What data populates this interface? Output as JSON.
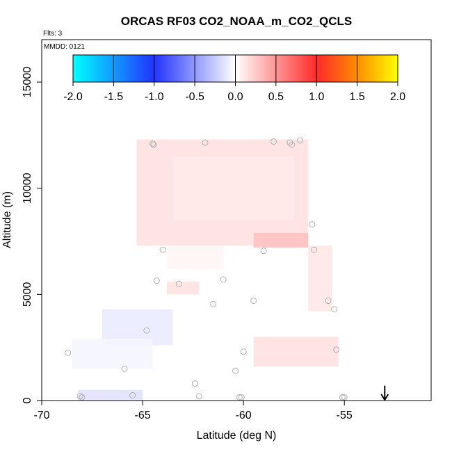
{
  "chart_data": {
    "type": "heatmap",
    "title": "ORCAS RF03 CO2_NOAA_m_CO2_QCLS",
    "annotations": {
      "flights": "Flts: 3",
      "date": "MMDD: 0121"
    },
    "xlabel": "Latitude (deg N)",
    "ylabel": "Altitude (m)",
    "xlim": [
      -70,
      -50.7
    ],
    "ylim": [
      0,
      17000
    ],
    "x_ticks": [
      -70,
      -65,
      -60,
      -55
    ],
    "y_ticks": [
      0,
      5000,
      10000,
      15000
    ],
    "grid": false,
    "colorbar": {
      "placement": "inside-top",
      "range": [
        -2.0,
        2.0
      ],
      "ticks": [
        "-2.0",
        "-1.5",
        "-1.0",
        "-0.5",
        "0.0",
        "0.5",
        "1.0",
        "1.5",
        "2.0"
      ],
      "color_stops": [
        {
          "value": -2.0,
          "color": "#00ffff"
        },
        {
          "value": -1.0,
          "color": "#2233ff"
        },
        {
          "value": 0.0,
          "color": "#ffffff"
        },
        {
          "value": 1.0,
          "color": "#ff2a2a"
        },
        {
          "value": 1.5,
          "color": "#ff8c00"
        },
        {
          "value": 2.0,
          "color": "#ffff00"
        }
      ]
    },
    "regions": [
      {
        "lat": [
          -65.3,
          -56.8
        ],
        "alt": [
          7300,
          12300
        ],
        "value": 0.15
      },
      {
        "lat": [
          -63.5,
          -57.5
        ],
        "alt": [
          8500,
          11500
        ],
        "value": 0.1
      },
      {
        "lat": [
          -59.5,
          -56.8
        ],
        "alt": [
          7200,
          7900
        ],
        "value": 0.3
      },
      {
        "lat": [
          -63.8,
          -61.0
        ],
        "alt": [
          6200,
          7300
        ],
        "value": 0.05
      },
      {
        "lat": [
          -63.8,
          -62.2
        ],
        "alt": [
          5000,
          5600
        ],
        "value": 0.15
      },
      {
        "lat": [
          -56.8,
          -55.6
        ],
        "alt": [
          4200,
          7300
        ],
        "value": 0.12
      },
      {
        "lat": [
          -59.5,
          -55.3
        ],
        "alt": [
          1600,
          3000
        ],
        "value": 0.15
      },
      {
        "lat": [
          -67.0,
          -63.5
        ],
        "alt": [
          2600,
          4300
        ],
        "value": -0.1
      },
      {
        "lat": [
          -68.5,
          -64.5
        ],
        "alt": [
          1500,
          2900
        ],
        "value": -0.05
      },
      {
        "lat": [
          -68.2,
          -65.0
        ],
        "alt": [
          0,
          500
        ],
        "value": -0.15
      }
    ],
    "observations": [
      {
        "lat": -64.5,
        "alt": 12100
      },
      {
        "lat": -64.45,
        "alt": 12050
      },
      {
        "lat": -61.9,
        "alt": 12150
      },
      {
        "lat": -58.5,
        "alt": 12200
      },
      {
        "lat": -57.7,
        "alt": 12150
      },
      {
        "lat": -57.6,
        "alt": 12050
      },
      {
        "lat": -57.2,
        "alt": 12250
      },
      {
        "lat": -56.6,
        "alt": 8300
      },
      {
        "lat": -56.5,
        "alt": 7100
      },
      {
        "lat": -64.0,
        "alt": 7100
      },
      {
        "lat": -59.0,
        "alt": 7050
      },
      {
        "lat": -64.3,
        "alt": 5650
      },
      {
        "lat": -63.2,
        "alt": 5500
      },
      {
        "lat": -61.0,
        "alt": 5700
      },
      {
        "lat": -61.5,
        "alt": 4550
      },
      {
        "lat": -59.5,
        "alt": 4700
      },
      {
        "lat": -55.8,
        "alt": 4700
      },
      {
        "lat": -55.5,
        "alt": 4300
      },
      {
        "lat": -64.8,
        "alt": 3300
      },
      {
        "lat": -68.7,
        "alt": 2250
      },
      {
        "lat": -60.0,
        "alt": 2300
      },
      {
        "lat": -55.4,
        "alt": 2400
      },
      {
        "lat": -65.9,
        "alt": 1500
      },
      {
        "lat": -60.4,
        "alt": 1400
      },
      {
        "lat": -62.4,
        "alt": 800
      },
      {
        "lat": -65.5,
        "alt": 250
      },
      {
        "lat": -68.1,
        "alt": 200
      },
      {
        "lat": -68.0,
        "alt": 150
      },
      {
        "lat": -62.2,
        "alt": 200
      },
      {
        "lat": -60.2,
        "alt": 150
      },
      {
        "lat": -60.1,
        "alt": 150
      },
      {
        "lat": -55.1,
        "alt": 150
      },
      {
        "lat": -55.0,
        "alt": 150
      }
    ],
    "marker": {
      "type": "arrow-down",
      "lat": -53.0,
      "alt": 700
    }
  }
}
